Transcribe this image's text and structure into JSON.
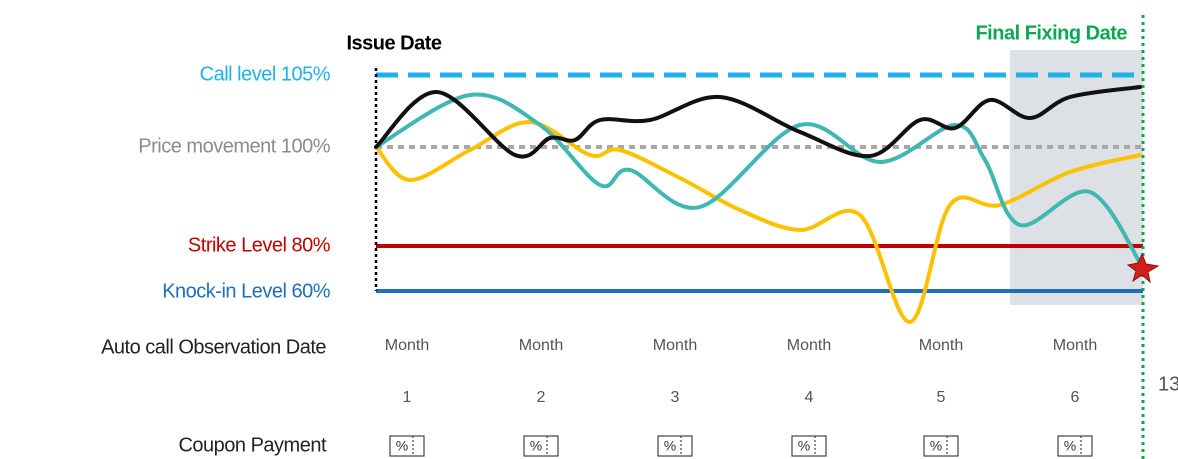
{
  "header": {
    "issue_date": "Issue Date",
    "final_fixing_date": "Final Fixing Date"
  },
  "levels": {
    "call": "Call level 105%",
    "price": "Price movement 100%",
    "strike": "Strike Level 80%",
    "knock_in": "Knock-in Level 60%"
  },
  "rows": {
    "observation": "Auto call Observation Date",
    "coupon": "Coupon Payment"
  },
  "months": [
    {
      "label": "Month",
      "number": "1"
    },
    {
      "label": "Month",
      "number": "2"
    },
    {
      "label": "Month",
      "number": "3"
    },
    {
      "label": "Month",
      "number": "4"
    },
    {
      "label": "Month",
      "number": "5"
    },
    {
      "label": "Month",
      "number": "6"
    }
  ],
  "coupon_icon": "%",
  "page_number": "13"
}
